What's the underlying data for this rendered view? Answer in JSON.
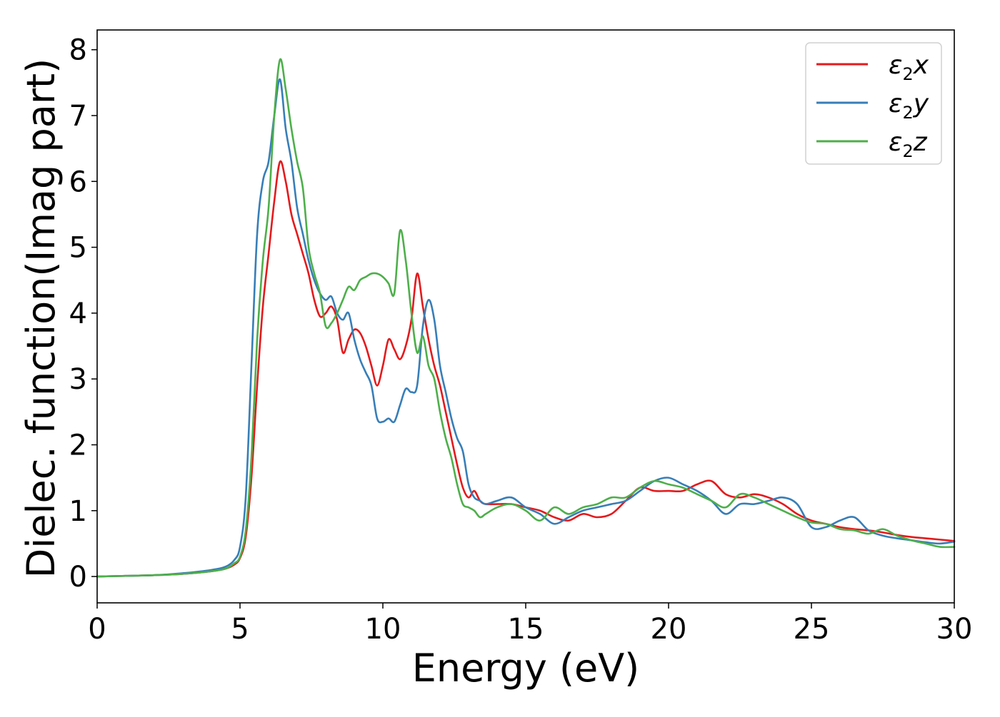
{
  "chart_data": {
    "type": "line",
    "title": "",
    "xlabel": "Energy (eV)",
    "ylabel": "Dielec. function(Imag part)",
    "xlim": [
      0,
      30
    ],
    "ylim": [
      -0.4,
      8.3
    ],
    "xticks": [
      0,
      5,
      10,
      15,
      20,
      25,
      30
    ],
    "yticks": [
      0,
      1,
      2,
      3,
      4,
      5,
      6,
      7,
      8
    ],
    "grid": false,
    "legend_position": "top-right",
    "series": [
      {
        "name": "ε₂x",
        "legend_base": "ε",
        "legend_sub": "2",
        "legend_suffix": "x",
        "color": "#e41a1c",
        "points": [
          [
            0,
            0.0
          ],
          [
            1,
            0.01
          ],
          [
            2,
            0.02
          ],
          [
            3,
            0.04
          ],
          [
            4,
            0.08
          ],
          [
            4.5,
            0.12
          ],
          [
            4.8,
            0.18
          ],
          [
            5.0,
            0.28
          ],
          [
            5.2,
            0.6
          ],
          [
            5.4,
            1.5
          ],
          [
            5.6,
            2.9
          ],
          [
            5.8,
            4.1
          ],
          [
            6.0,
            4.9
          ],
          [
            6.2,
            5.7
          ],
          [
            6.4,
            6.3
          ],
          [
            6.6,
            6.0
          ],
          [
            6.8,
            5.5
          ],
          [
            7.0,
            5.2
          ],
          [
            7.2,
            4.9
          ],
          [
            7.4,
            4.6
          ],
          [
            7.6,
            4.2
          ],
          [
            7.8,
            3.95
          ],
          [
            8.0,
            4.0
          ],
          [
            8.2,
            4.1
          ],
          [
            8.4,
            3.9
          ],
          [
            8.6,
            3.4
          ],
          [
            8.8,
            3.6
          ],
          [
            9.0,
            3.75
          ],
          [
            9.2,
            3.7
          ],
          [
            9.4,
            3.5
          ],
          [
            9.6,
            3.2
          ],
          [
            9.8,
            2.9
          ],
          [
            10.0,
            3.2
          ],
          [
            10.2,
            3.6
          ],
          [
            10.4,
            3.45
          ],
          [
            10.6,
            3.3
          ],
          [
            10.8,
            3.5
          ],
          [
            11.0,
            3.9
          ],
          [
            11.2,
            4.6
          ],
          [
            11.4,
            4.1
          ],
          [
            11.6,
            3.6
          ],
          [
            11.8,
            3.2
          ],
          [
            12.0,
            2.9
          ],
          [
            12.2,
            2.5
          ],
          [
            12.4,
            2.1
          ],
          [
            12.6,
            1.7
          ],
          [
            12.8,
            1.35
          ],
          [
            13.0,
            1.2
          ],
          [
            13.2,
            1.3
          ],
          [
            13.4,
            1.15
          ],
          [
            13.6,
            1.1
          ],
          [
            14.0,
            1.1
          ],
          [
            14.5,
            1.1
          ],
          [
            15.0,
            1.05
          ],
          [
            15.5,
            1.0
          ],
          [
            16.0,
            0.9
          ],
          [
            16.5,
            0.85
          ],
          [
            17.0,
            0.95
          ],
          [
            17.5,
            0.9
          ],
          [
            18.0,
            0.95
          ],
          [
            18.5,
            1.15
          ],
          [
            19.0,
            1.35
          ],
          [
            19.5,
            1.3
          ],
          [
            20.0,
            1.3
          ],
          [
            20.5,
            1.3
          ],
          [
            21.0,
            1.4
          ],
          [
            21.5,
            1.45
          ],
          [
            22.0,
            1.25
          ],
          [
            22.5,
            1.2
          ],
          [
            23.0,
            1.25
          ],
          [
            23.5,
            1.2
          ],
          [
            24.0,
            1.1
          ],
          [
            24.5,
            0.95
          ],
          [
            25.0,
            0.85
          ],
          [
            25.5,
            0.8
          ],
          [
            26.0,
            0.75
          ],
          [
            26.5,
            0.72
          ],
          [
            27.0,
            0.7
          ],
          [
            27.5,
            0.67
          ],
          [
            28.0,
            0.63
          ],
          [
            28.5,
            0.6
          ],
          [
            29.0,
            0.58
          ],
          [
            29.5,
            0.56
          ],
          [
            30.0,
            0.54
          ]
        ]
      },
      {
        "name": "ε₂y",
        "legend_base": "ε",
        "legend_sub": "2",
        "legend_suffix": "y",
        "color": "#377eb8",
        "points": [
          [
            0,
            0.0
          ],
          [
            1,
            0.01
          ],
          [
            2,
            0.02
          ],
          [
            3,
            0.05
          ],
          [
            4,
            0.1
          ],
          [
            4.5,
            0.15
          ],
          [
            4.8,
            0.25
          ],
          [
            5.0,
            0.45
          ],
          [
            5.2,
            1.2
          ],
          [
            5.4,
            3.2
          ],
          [
            5.6,
            5.2
          ],
          [
            5.8,
            6.0
          ],
          [
            6.0,
            6.3
          ],
          [
            6.2,
            7.0
          ],
          [
            6.4,
            7.55
          ],
          [
            6.6,
            6.8
          ],
          [
            6.8,
            6.3
          ],
          [
            7.0,
            5.6
          ],
          [
            7.2,
            5.2
          ],
          [
            7.4,
            4.8
          ],
          [
            7.6,
            4.5
          ],
          [
            7.8,
            4.3
          ],
          [
            8.0,
            4.2
          ],
          [
            8.2,
            4.25
          ],
          [
            8.4,
            4.0
          ],
          [
            8.6,
            3.9
          ],
          [
            8.8,
            4.0
          ],
          [
            9.0,
            3.6
          ],
          [
            9.2,
            3.3
          ],
          [
            9.4,
            3.1
          ],
          [
            9.6,
            2.9
          ],
          [
            9.8,
            2.4
          ],
          [
            10.0,
            2.35
          ],
          [
            10.2,
            2.4
          ],
          [
            10.4,
            2.35
          ],
          [
            10.6,
            2.6
          ],
          [
            10.8,
            2.85
          ],
          [
            11.0,
            2.8
          ],
          [
            11.2,
            2.9
          ],
          [
            11.4,
            3.8
          ],
          [
            11.6,
            4.2
          ],
          [
            11.8,
            3.9
          ],
          [
            12.0,
            3.2
          ],
          [
            12.2,
            2.8
          ],
          [
            12.4,
            2.4
          ],
          [
            12.6,
            2.1
          ],
          [
            12.8,
            1.9
          ],
          [
            13.0,
            1.4
          ],
          [
            13.2,
            1.2
          ],
          [
            13.4,
            1.15
          ],
          [
            13.6,
            1.1
          ],
          [
            14.0,
            1.15
          ],
          [
            14.5,
            1.2
          ],
          [
            15.0,
            1.05
          ],
          [
            15.5,
            0.95
          ],
          [
            16.0,
            0.8
          ],
          [
            16.5,
            0.9
          ],
          [
            17.0,
            1.0
          ],
          [
            17.5,
            1.05
          ],
          [
            18.0,
            1.1
          ],
          [
            18.5,
            1.15
          ],
          [
            19.0,
            1.3
          ],
          [
            19.5,
            1.45
          ],
          [
            20.0,
            1.5
          ],
          [
            20.5,
            1.4
          ],
          [
            21.0,
            1.3
          ],
          [
            21.5,
            1.15
          ],
          [
            22.0,
            0.95
          ],
          [
            22.5,
            1.1
          ],
          [
            23.0,
            1.1
          ],
          [
            23.5,
            1.15
          ],
          [
            24.0,
            1.2
          ],
          [
            24.5,
            1.1
          ],
          [
            25.0,
            0.75
          ],
          [
            25.5,
            0.75
          ],
          [
            26.0,
            0.85
          ],
          [
            26.5,
            0.9
          ],
          [
            27.0,
            0.7
          ],
          [
            27.5,
            0.62
          ],
          [
            28.0,
            0.58
          ],
          [
            28.5,
            0.55
          ],
          [
            29.0,
            0.52
          ],
          [
            29.5,
            0.5
          ],
          [
            30.0,
            0.53
          ]
        ]
      },
      {
        "name": "ε₂z",
        "legend_base": "ε",
        "legend_sub": "2",
        "legend_suffix": "z",
        "color": "#4daf4a",
        "points": [
          [
            0,
            0.0
          ],
          [
            1,
            0.01
          ],
          [
            2,
            0.02
          ],
          [
            3,
            0.04
          ],
          [
            4,
            0.08
          ],
          [
            4.5,
            0.12
          ],
          [
            4.8,
            0.2
          ],
          [
            5.0,
            0.3
          ],
          [
            5.2,
            0.7
          ],
          [
            5.4,
            1.8
          ],
          [
            5.6,
            3.6
          ],
          [
            5.8,
            4.8
          ],
          [
            6.0,
            5.6
          ],
          [
            6.2,
            7.0
          ],
          [
            6.4,
            7.85
          ],
          [
            6.6,
            7.4
          ],
          [
            6.8,
            6.8
          ],
          [
            7.0,
            6.3
          ],
          [
            7.2,
            5.9
          ],
          [
            7.4,
            5.0
          ],
          [
            7.6,
            4.6
          ],
          [
            7.8,
            4.3
          ],
          [
            8.0,
            3.8
          ],
          [
            8.2,
            3.85
          ],
          [
            8.4,
            4.0
          ],
          [
            8.6,
            4.2
          ],
          [
            8.8,
            4.4
          ],
          [
            9.0,
            4.35
          ],
          [
            9.2,
            4.5
          ],
          [
            9.4,
            4.55
          ],
          [
            9.6,
            4.6
          ],
          [
            9.8,
            4.6
          ],
          [
            10.0,
            4.55
          ],
          [
            10.2,
            4.45
          ],
          [
            10.4,
            4.3
          ],
          [
            10.6,
            5.25
          ],
          [
            10.8,
            4.8
          ],
          [
            11.0,
            4.0
          ],
          [
            11.2,
            3.4
          ],
          [
            11.4,
            3.65
          ],
          [
            11.6,
            3.2
          ],
          [
            11.8,
            3.0
          ],
          [
            12.0,
            2.5
          ],
          [
            12.2,
            2.1
          ],
          [
            12.4,
            1.8
          ],
          [
            12.6,
            1.4
          ],
          [
            12.8,
            1.1
          ],
          [
            13.0,
            1.05
          ],
          [
            13.2,
            1.0
          ],
          [
            13.4,
            0.9
          ],
          [
            13.6,
            0.95
          ],
          [
            14.0,
            1.05
          ],
          [
            14.5,
            1.1
          ],
          [
            15.0,
            1.0
          ],
          [
            15.5,
            0.85
          ],
          [
            16.0,
            1.05
          ],
          [
            16.5,
            0.95
          ],
          [
            17.0,
            1.05
          ],
          [
            17.5,
            1.1
          ],
          [
            18.0,
            1.2
          ],
          [
            18.5,
            1.2
          ],
          [
            19.0,
            1.35
          ],
          [
            19.5,
            1.45
          ],
          [
            20.0,
            1.4
          ],
          [
            20.5,
            1.35
          ],
          [
            21.0,
            1.25
          ],
          [
            21.5,
            1.15
          ],
          [
            22.0,
            1.05
          ],
          [
            22.5,
            1.25
          ],
          [
            23.0,
            1.2
          ],
          [
            23.5,
            1.1
          ],
          [
            24.0,
            1.0
          ],
          [
            24.5,
            0.9
          ],
          [
            25.0,
            0.82
          ],
          [
            25.5,
            0.8
          ],
          [
            26.0,
            0.72
          ],
          [
            26.5,
            0.7
          ],
          [
            27.0,
            0.65
          ],
          [
            27.5,
            0.72
          ],
          [
            28.0,
            0.62
          ],
          [
            28.5,
            0.55
          ],
          [
            29.0,
            0.5
          ],
          [
            29.5,
            0.45
          ],
          [
            30.0,
            0.45
          ]
        ]
      }
    ]
  }
}
